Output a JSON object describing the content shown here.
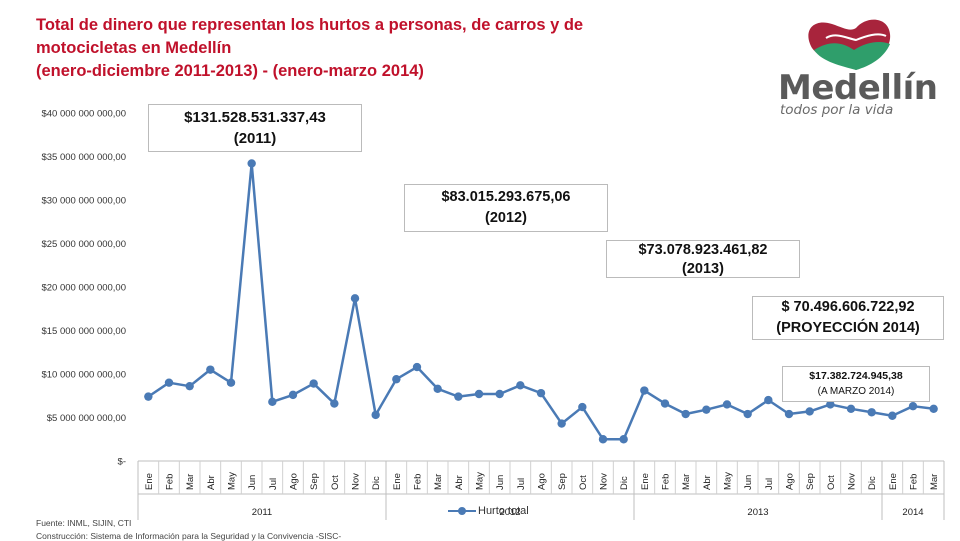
{
  "title": {
    "line1": "Total de dinero que representan los hurtos a personas, de carros y de",
    "line2": "motocicletas en Medellín",
    "line3": "(enero-diciembre 2011-2013) - (enero-marzo 2014)"
  },
  "logo": {
    "word": "Medellín",
    "tagline": "todos por la vida"
  },
  "annotations": [
    {
      "amount": "$131.528.531.337,43",
      "period": "(2011)"
    },
    {
      "amount": "$83.015.293.675,06",
      "period": "(2012)"
    },
    {
      "amount": "$73.078.923.461,82",
      "period": "(2013)"
    },
    {
      "amount": "$ 70.496.606.722,92",
      "period": "(PROYECCIÓN 2014)"
    },
    {
      "amount": "$17.382.724.945,38",
      "period": "(A MARZO 2014)"
    }
  ],
  "footer": {
    "source": "Fuente: INML, SIJIN, CTI",
    "construction": "Construcción: Sistema de Información para la Seguridad y la Convivencia -SISC-"
  },
  "chart_data": {
    "type": "line",
    "ylim": [
      0,
      40000000000
    ],
    "y_ticks": [
      {
        "value": 0,
        "label": "$-"
      },
      {
        "value": 5000000000,
        "label": "$5 000 000 000,00"
      },
      {
        "value": 10000000000,
        "label": "$10 000 000 000,00"
      },
      {
        "value": 15000000000,
        "label": "$15 000 000 000,00"
      },
      {
        "value": 20000000000,
        "label": "$20 000 000 000,00"
      },
      {
        "value": 25000000000,
        "label": "$25 000 000 000,00"
      },
      {
        "value": 30000000000,
        "label": "$30 000 000 000,00"
      },
      {
        "value": 35000000000,
        "label": "$35 000 000 000,00"
      },
      {
        "value": 40000000000,
        "label": "$40 000 000 000,00"
      }
    ],
    "categories": [
      "Ene",
      "Feb",
      "Mar",
      "Abr",
      "May",
      "Jun",
      "Jul",
      "Ago",
      "Sep",
      "Oct",
      "Nov",
      "Dic",
      "Ene",
      "Feb",
      "Mar",
      "Abr",
      "May",
      "Jun",
      "Jul",
      "Ago",
      "Sep",
      "Oct",
      "Nov",
      "Dic",
      "Ene",
      "Feb",
      "Mar",
      "Abr",
      "May",
      "Jun",
      "Jul",
      "Ago",
      "Sep",
      "Oct",
      "Nov",
      "Dic",
      "Ene",
      "Feb",
      "Mar"
    ],
    "year_groups": [
      {
        "label": "2011",
        "count": 12
      },
      {
        "label": "2012",
        "count": 12
      },
      {
        "label": "2013",
        "count": 12
      },
      {
        "label": "2014",
        "count": 3
      }
    ],
    "series": [
      {
        "name": "Hurto total",
        "color": "#4a7ab5",
        "values": [
          7400000000,
          9000000000,
          8600000000,
          10500000000,
          9000000000,
          34200000000,
          6800000000,
          7600000000,
          8900000000,
          6600000000,
          18700000000,
          5300000000,
          9400000000,
          10800000000,
          8300000000,
          7400000000,
          7700000000,
          7700000000,
          8700000000,
          7800000000,
          4300000000,
          6200000000,
          2500000000,
          2500000000,
          8100000000,
          6600000000,
          5400000000,
          5900000000,
          6500000000,
          5400000000,
          7000000000,
          5400000000,
          5700000000,
          6500000000,
          6000000000,
          5600000000,
          5200000000,
          6300000000,
          6000000000
        ]
      }
    ]
  }
}
